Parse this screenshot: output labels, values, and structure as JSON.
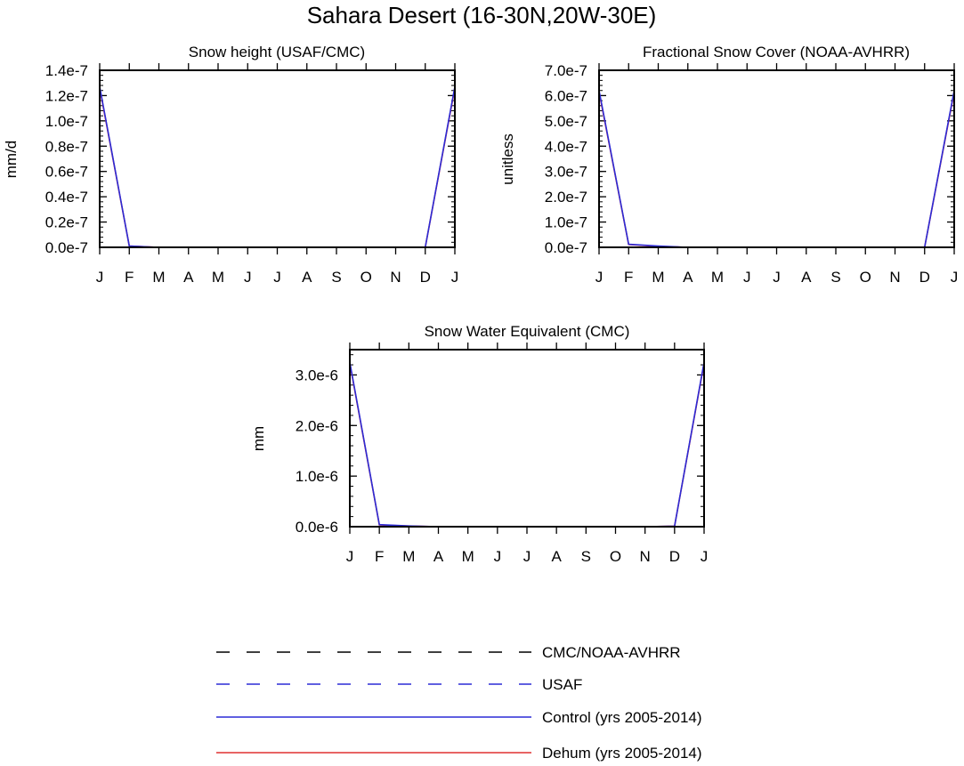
{
  "figure": {
    "title": "Sahara Desert (16-30N,20W-30E)"
  },
  "month_labels": [
    "J",
    "F",
    "M",
    "A",
    "M",
    "J",
    "J",
    "A",
    "S",
    "O",
    "N",
    "D",
    "J"
  ],
  "colors": {
    "obs": "#000000",
    "usaf": "#2b2bd6",
    "control": "#2b2bd6",
    "dehum": "#e03030"
  },
  "chart_data": [
    {
      "type": "line",
      "title": "Snow height (USAF/CMC)",
      "ylabel": "mm/d",
      "x": [
        1,
        2,
        3,
        4,
        5,
        6,
        7,
        8,
        9,
        10,
        11,
        12,
        13
      ],
      "ylim": [
        0,
        1.4e-07
      ],
      "yticks": [
        0,
        2e-08,
        4e-08,
        6e-08,
        8e-08,
        1e-07,
        1.2e-07,
        1.4e-07
      ],
      "ytick_labels": [
        "0.0e-7",
        "0.2e-7",
        "0.4e-7",
        "0.6e-7",
        "0.8e-7",
        "1.0e-7",
        "1.2e-7",
        "1.4e-7"
      ],
      "series": [
        {
          "name": "Control (yrs 2005-2014)",
          "values": [
            1.27e-07,
            1e-09,
            0,
            0,
            0,
            0,
            0,
            0,
            0,
            0,
            0,
            0,
            1.27e-07
          ]
        },
        {
          "name": "Dehum (yrs 2005-2014)",
          "values": [
            1.26e-07,
            1e-09,
            0,
            0,
            0,
            0,
            0,
            0,
            0,
            0,
            0,
            0,
            1.26e-07
          ]
        }
      ]
    },
    {
      "type": "line",
      "title": "Fractional Snow Cover (NOAA-AVHRR)",
      "ylabel": "unitless",
      "x": [
        1,
        2,
        3,
        4,
        5,
        6,
        7,
        8,
        9,
        10,
        11,
        12,
        13
      ],
      "ylim": [
        0,
        7e-07
      ],
      "yticks": [
        0,
        1e-07,
        2e-07,
        3e-07,
        4e-07,
        5e-07,
        6e-07,
        7e-07
      ],
      "ytick_labels": [
        "0.0e-7",
        "1.0e-7",
        "2.0e-7",
        "3.0e-7",
        "4.0e-7",
        "5.0e-7",
        "6.0e-7",
        "7.0e-7"
      ],
      "series": [
        {
          "name": "Control (yrs 2005-2014)",
          "values": [
            6.2e-07,
            1.2e-08,
            5e-09,
            0,
            0,
            0,
            0,
            0,
            0,
            0,
            0,
            0,
            6.2e-07
          ]
        },
        {
          "name": "Dehum (yrs 2005-2014)",
          "values": [
            6.15e-07,
            1.1e-08,
            4e-09,
            0,
            0,
            0,
            0,
            0,
            0,
            0,
            0,
            0,
            6.15e-07
          ]
        }
      ]
    },
    {
      "type": "line",
      "title": "Snow Water Equivalent (CMC)",
      "ylabel": "mm",
      "x": [
        1,
        2,
        3,
        4,
        5,
        6,
        7,
        8,
        9,
        10,
        11,
        12,
        13
      ],
      "ylim": [
        0,
        3.5e-06
      ],
      "yticks": [
        0,
        1e-06,
        2e-06,
        3e-06
      ],
      "ytick_labels": [
        "0.0e-6",
        "1.0e-6",
        "2.0e-6",
        "3.0e-6"
      ],
      "series": [
        {
          "name": "Control (yrs 2005-2014)",
          "values": [
            3.25e-06,
            4e-08,
            1.5e-08,
            0,
            0,
            0,
            0,
            0,
            0,
            0,
            0,
            1e-08,
            3.25e-06
          ]
        },
        {
          "name": "Dehum (yrs 2005-2014)",
          "values": [
            3.23e-06,
            3.5e-08,
            1.2e-08,
            0,
            0,
            0,
            0,
            0,
            0,
            0,
            0,
            1e-08,
            3.23e-06
          ]
        }
      ]
    }
  ],
  "legend": [
    {
      "label": "CMC/NOAA-AVHRR",
      "style": "dashed",
      "color_key": "obs"
    },
    {
      "label": "USAF",
      "style": "dashed",
      "color_key": "usaf"
    },
    {
      "label": "Control (yrs 2005-2014)",
      "style": "solid",
      "color_key": "control"
    },
    {
      "label": "Dehum (yrs 2005-2014)",
      "style": "solid",
      "color_key": "dehum"
    }
  ]
}
